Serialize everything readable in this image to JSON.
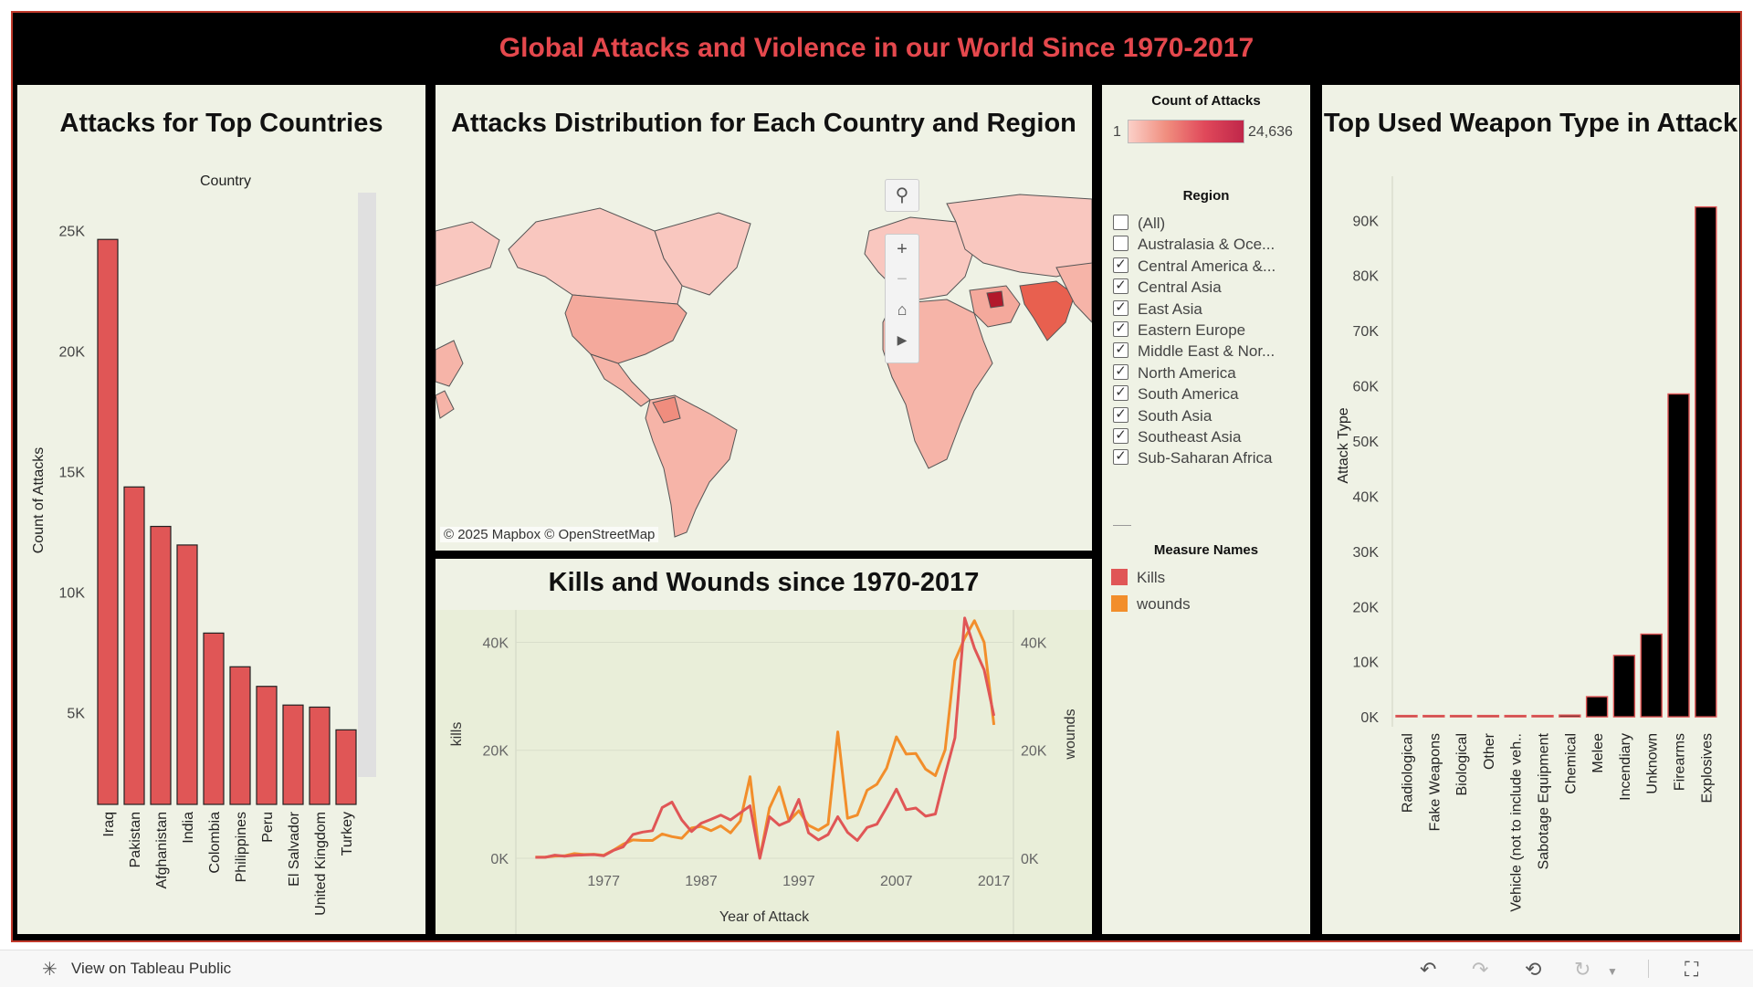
{
  "dashboard": {
    "title": "Global Attacks and Violence in our World Since 1970-2017"
  },
  "panels": {
    "countries_title": "Attacks for Top Countries",
    "map_title": "Attacks Distribution for Each Country and Region",
    "line_title": "Kills and Wounds since 1970-2017",
    "weapon_title": "Top Used Weapon Type in Attack"
  },
  "map": {
    "attribution": "© 2025 Mapbox  © OpenStreetMap",
    "highlight_color": "#c0392b",
    "base_color": "#f7bdb4"
  },
  "legend": {
    "count_title": "Count of Attacks",
    "count_min": "1",
    "count_max": "24,636",
    "region_title": "Region",
    "regions": [
      {
        "label": "(All)",
        "checked": false
      },
      {
        "label": "Australasia & Oce...",
        "checked": false
      },
      {
        "label": "Central America &...",
        "checked": true
      },
      {
        "label": "Central Asia",
        "checked": true
      },
      {
        "label": "East Asia",
        "checked": true
      },
      {
        "label": "Eastern Europe",
        "checked": true
      },
      {
        "label": "Middle East & Nor...",
        "checked": true
      },
      {
        "label": "North America",
        "checked": true
      },
      {
        "label": "South America",
        "checked": true
      },
      {
        "label": "South Asia",
        "checked": true
      },
      {
        "label": "Southeast Asia",
        "checked": true
      },
      {
        "label": "Sub-Saharan Africa",
        "checked": true
      }
    ],
    "measure_title": "Measure Names",
    "measures": [
      {
        "label": "Kills",
        "color": "#e05656"
      },
      {
        "label": "wounds",
        "color": "#f28e2b"
      }
    ]
  },
  "footer": {
    "view_label": "View on Tableau Public"
  },
  "chart_data": [
    {
      "type": "bar",
      "header": "Country",
      "ylabel": "Count of Attacks",
      "categories": [
        "Iraq",
        "Pakistan",
        "Afghanistan",
        "India",
        "Colombia",
        "Philippines",
        "Peru",
        "El Salvador",
        "United Kingdom",
        "Turkey"
      ],
      "values": [
        24636,
        14368,
        12731,
        11960,
        8306,
        6908,
        6096,
        5320,
        5235,
        4292
      ],
      "yticks": [
        5000,
        10000,
        15000,
        20000,
        25000
      ],
      "ytick_labels": [
        "5K",
        "10K",
        "15K",
        "20K",
        "25K"
      ],
      "ylim": [
        1200,
        26500
      ],
      "bar_color": "#e05656"
    },
    {
      "type": "line",
      "xlabel": "Year of Attack",
      "ylabel_left": "kills",
      "ylabel_right": "wounds",
      "xticks": [
        1977,
        1987,
        1997,
        2007,
        2017
      ],
      "yticks": [
        0,
        20000,
        40000
      ],
      "ytick_labels": [
        "0K",
        "20K",
        "40K"
      ],
      "ylim": [
        0,
        46000
      ],
      "xlim": [
        1968,
        2019
      ],
      "series": [
        {
          "name": "Kills",
          "color": "#e05656",
          "x": [
            1970,
            1971,
            1972,
            1973,
            1974,
            1975,
            1976,
            1977,
            1978,
            1979,
            1980,
            1981,
            1982,
            1983,
            1984,
            1985,
            1986,
            1987,
            1988,
            1989,
            1990,
            1991,
            1992,
            1993,
            1994,
            1995,
            1996,
            1997,
            1998,
            1999,
            2000,
            2001,
            2002,
            2003,
            2004,
            2005,
            2006,
            2007,
            2008,
            2009,
            2010,
            2011,
            2012,
            2013,
            2014,
            2015,
            2016,
            2017
          ],
          "values": [
            170,
            170,
            570,
            370,
            540,
            610,
            680,
            460,
            1460,
            2100,
            4400,
            4850,
            5100,
            9400,
            10400,
            7100,
            4950,
            6500,
            7200,
            8000,
            7100,
            8400,
            9700,
            0,
            7700,
            6100,
            6900,
            10900,
            4700,
            3400,
            4400,
            7700,
            4800,
            3300,
            5700,
            6300,
            9400,
            12800,
            9000,
            9300,
            7800,
            8200,
            15500,
            22300,
            44500,
            38900,
            34900,
            26400
          ]
        },
        {
          "name": "wounds",
          "color": "#f28e2b",
          "x": [
            1970,
            1971,
            1972,
            1973,
            1974,
            1975,
            1976,
            1977,
            1978,
            1979,
            1980,
            1981,
            1982,
            1983,
            1984,
            1985,
            1986,
            1987,
            1988,
            1989,
            1990,
            1991,
            1992,
            1993,
            1994,
            1995,
            1996,
            1997,
            1998,
            1999,
            2000,
            2001,
            2002,
            2003,
            2004,
            2005,
            2006,
            2007,
            2008,
            2009,
            2010,
            2011,
            2012,
            2013,
            2014,
            2015,
            2016,
            2017
          ],
          "values": [
            210,
            210,
            410,
            460,
            870,
            690,
            740,
            560,
            1500,
            2600,
            3400,
            3300,
            3300,
            4500,
            4000,
            3700,
            5600,
            5900,
            5100,
            6000,
            4700,
            6900,
            15100,
            0,
            9300,
            13200,
            6900,
            8800,
            6100,
            5200,
            6300,
            23400,
            7400,
            8000,
            12600,
            13700,
            16700,
            22500,
            19300,
            19400,
            16500,
            15300,
            20100,
            36600,
            40800,
            44000,
            40000,
            24700
          ]
        }
      ]
    },
    {
      "type": "bar",
      "ylabel": "Attack Type",
      "categories": [
        "Radiological",
        "Fake Weapons",
        "Biological",
        "Other",
        "Vehicle (not to include veh..",
        "Sabotage Equipment",
        "Chemical",
        "Melee",
        "Incendiary",
        "Unknown",
        "Firearms",
        "Explosives"
      ],
      "values": [
        14,
        33,
        35,
        114,
        136,
        141,
        321,
        3655,
        11135,
        14995,
        58524,
        92426
      ],
      "yticks": [
        0,
        10000,
        20000,
        30000,
        40000,
        50000,
        60000,
        70000,
        80000,
        90000
      ],
      "ytick_labels": [
        "0K",
        "10K",
        "20K",
        "30K",
        "40K",
        "50K",
        "60K",
        "70K",
        "80K",
        "90K"
      ],
      "ylim": [
        -1800,
        97000
      ],
      "bar_color": "#000000"
    }
  ]
}
